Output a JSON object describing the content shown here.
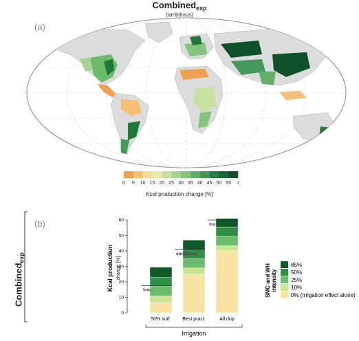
{
  "header": {
    "title_main": "Combined",
    "title_sub": "exp",
    "subtitle": "(ambitious)"
  },
  "panel_a_label": "(a)",
  "panel_b_label": "(b)",
  "side_label": {
    "main": "Combined",
    "sub": "exp"
  },
  "colorbar": {
    "ticks": [
      "0",
      "5",
      "10",
      "15",
      "20",
      "25",
      "30",
      "35",
      "40",
      "45",
      "50",
      "55",
      ">"
    ],
    "colors": [
      "#f0a050",
      "#f5c078",
      "#f7dc9a",
      "#e8eab0",
      "#c8e0a0",
      "#a6d490",
      "#84c47c",
      "#62b06a",
      "#44985a",
      "#2a8048",
      "#1a6838",
      "#0e502a"
    ],
    "label": "Kcal production change [%]"
  },
  "chart_data": {
    "type": "bar",
    "stacked": true,
    "categories": [
      "50% surf.",
      "Best pract.",
      "All drip"
    ],
    "xlabel": "Irrigation",
    "ylabel_line1": "Kcal production",
    "ylabel_line2": "change [%]",
    "ylim": [
      0,
      60
    ],
    "yticks": [
      "0",
      "10",
      "20",
      "30",
      "40",
      "50",
      "60"
    ],
    "series": [
      {
        "name": "0%  (Irrigation effect alone)",
        "color": "#f7e3a4",
        "values": [
          6.5,
          25,
          40
        ]
      },
      {
        "name": "10%",
        "color": "#c9e58e",
        "values": [
          4.5,
          4,
          3.5
        ]
      },
      {
        "name": "25%",
        "color": "#6dbb6d",
        "values": [
          6,
          6,
          6
        ]
      },
      {
        "name": "50%",
        "color": "#2f8f46",
        "values": [
          6,
          6,
          6
        ]
      },
      {
        "name": "85%",
        "color": "#0f5a28",
        "values": [
          6.5,
          6,
          5.5
        ]
      }
    ],
    "annotations": [
      {
        "text": "low",
        "value": 17.5
      },
      {
        "text": "ambitious",
        "value": 41
      },
      {
        "text": "max",
        "value": 60
      }
    ],
    "legend_title_line1": "SMC and WH",
    "legend_title_line2": "intensity",
    "legend_order": [
      4,
      3,
      2,
      1,
      0
    ],
    "grid": false,
    "legend_position": "right"
  }
}
